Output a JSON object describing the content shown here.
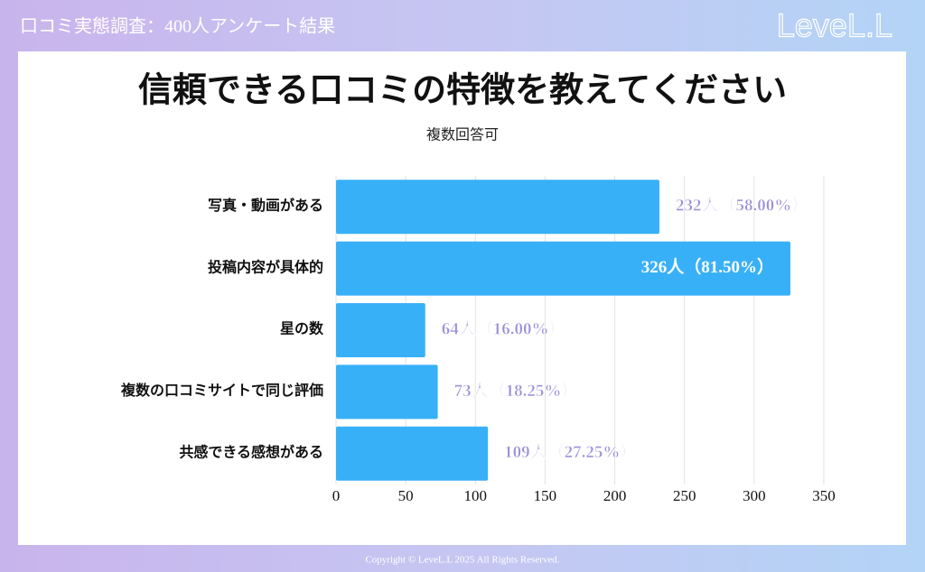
{
  "header": "口コミ実態調査：400人アンケート結果",
  "logo": "LeveL.L",
  "footer": "Copyright © LeveL.L 2025 All Rights Reserved.",
  "chart_data": {
    "type": "bar",
    "orientation": "horizontal",
    "title": "信頼できる口コミの特徴を教えてください",
    "subtitle": "複数回答可",
    "categories": [
      "写真・動画がある",
      "投稿内容が具体的",
      "星の数",
      "複数の口コミサイトで同じ評価",
      "共感できる感想がある"
    ],
    "values": [
      232,
      326,
      64,
      73,
      109
    ],
    "value_labels": [
      "232人（58.00%）",
      "326人（81.50%）",
      "64人（16.00%）",
      "73人（18.25%）",
      "109人（27.25%）"
    ],
    "color": "#38b0f7",
    "label_color": "#9a8fd8",
    "xlim": [
      0,
      350
    ],
    "xticks": [
      0,
      50,
      100,
      150,
      200,
      250,
      300,
      350
    ],
    "grid": true
  }
}
